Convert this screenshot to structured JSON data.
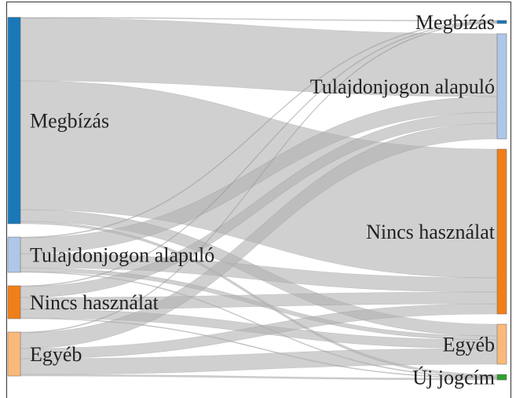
{
  "chart_data": {
    "type": "sankey",
    "sources": [
      {
        "name": "Megbízás",
        "color": "#1a78b8"
      },
      {
        "name": "Tulajdonjogon alapuló",
        "color": "#aec7e8"
      },
      {
        "name": "Nincs használat",
        "color": "#f07f1a"
      },
      {
        "name": "Egyéb",
        "color": "#f9b97a"
      }
    ],
    "targets": [
      {
        "name": "Megbízás",
        "color": "#1a78b8"
      },
      {
        "name": "Tulajdonjogon alapuló",
        "color": "#aec7e8"
      },
      {
        "name": "Nincs használat",
        "color": "#f07f1a"
      },
      {
        "name": "Egyéb",
        "color": "#f9b97a"
      },
      {
        "name": "Új jogcím",
        "color": "#2ca02c"
      }
    ],
    "link_color": "#b0b0b0",
    "links": [
      {
        "source": 0,
        "target": 0,
        "value": 1
      },
      {
        "source": 0,
        "target": 1,
        "value": 80
      },
      {
        "source": 0,
        "target": 2,
        "value": 164
      },
      {
        "source": 0,
        "target": 3,
        "value": 15
      },
      {
        "source": 0,
        "target": 4,
        "value": 3
      },
      {
        "source": 1,
        "target": 0,
        "value": 1
      },
      {
        "source": 1,
        "target": 1,
        "value": 20
      },
      {
        "source": 1,
        "target": 2,
        "value": 18
      },
      {
        "source": 1,
        "target": 3,
        "value": 5
      },
      {
        "source": 1,
        "target": 4,
        "value": 1
      },
      {
        "source": 2,
        "target": 0,
        "value": 1
      },
      {
        "source": 2,
        "target": 1,
        "value": 14
      },
      {
        "source": 2,
        "target": 2,
        "value": 15
      },
      {
        "source": 2,
        "target": 3,
        "value": 11
      },
      {
        "source": 2,
        "target": 4,
        "value": 1
      },
      {
        "source": 3,
        "target": 0,
        "value": 1
      },
      {
        "source": 3,
        "target": 1,
        "value": 20
      },
      {
        "source": 3,
        "target": 2,
        "value": 13
      },
      {
        "source": 3,
        "target": 3,
        "value": 20
      },
      {
        "source": 3,
        "target": 4,
        "value": 2
      }
    ]
  }
}
